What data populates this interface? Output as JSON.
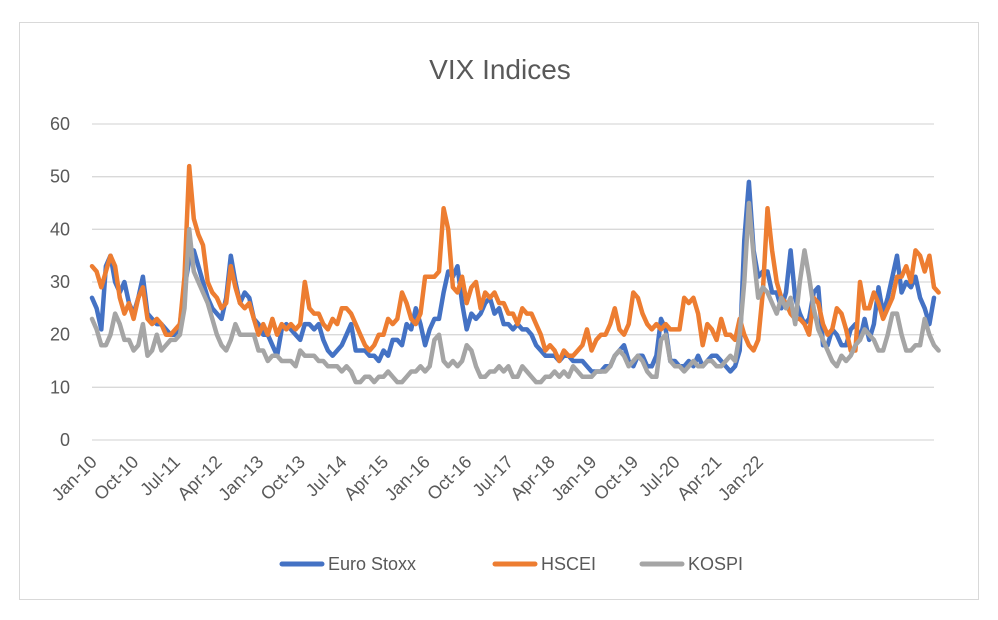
{
  "chart_data": {
    "type": "line",
    "title": "VIX Indices",
    "xlabel": "",
    "ylabel": "",
    "ylim": [
      0,
      60
    ],
    "yticks": [
      0,
      10,
      20,
      30,
      40,
      50,
      60
    ],
    "grid": true,
    "legend_position": "bottom",
    "x_start": "Jan-10",
    "frequency": "monthly",
    "x_tick_labels": [
      "Jan-10",
      "Oct-10",
      "Jul-11",
      "Apr-12",
      "Jan-13",
      "Oct-13",
      "Jul-14",
      "Apr-15",
      "Jan-16",
      "Oct-16",
      "Jul-17",
      "Apr-18",
      "Jan-19",
      "Oct-19",
      "Jul-20",
      "Apr-21",
      "Jan-22"
    ],
    "series": [
      {
        "name": "Euro Stoxx",
        "color": "#4472c4",
        "values": [
          27,
          25,
          21,
          33,
          35,
          30,
          28,
          30,
          26,
          24,
          27,
          31,
          24,
          23,
          22,
          22,
          21,
          20,
          20,
          22,
          29,
          34,
          36,
          33,
          30,
          27,
          25,
          24,
          23,
          27,
          35,
          30,
          26,
          28,
          27,
          23,
          22,
          20,
          20,
          18,
          16,
          21,
          22,
          21,
          20,
          19,
          22,
          22,
          21,
          22,
          19,
          17,
          16,
          17,
          18,
          20,
          22,
          17,
          17,
          17,
          16,
          16,
          15,
          17,
          16,
          19,
          19,
          18,
          22,
          21,
          25,
          22,
          18,
          21,
          23,
          23,
          28,
          32,
          31,
          33,
          26,
          21,
          24,
          23,
          24,
          26,
          27,
          24,
          25,
          22,
          22,
          21,
          22,
          21,
          21,
          20,
          18,
          17,
          16,
          16,
          16,
          15,
          16,
          16,
          15,
          15,
          15,
          14,
          13,
          13,
          13,
          14,
          14,
          16,
          17,
          18,
          15,
          14,
          16,
          16,
          14,
          14,
          16,
          23,
          21,
          15,
          15,
          14,
          14,
          15,
          14,
          16,
          14,
          15,
          16,
          16,
          15,
          14,
          13,
          14,
          17,
          38,
          49,
          36,
          31,
          32,
          32,
          28,
          28,
          25,
          28,
          36,
          27,
          24,
          22,
          23,
          28,
          29,
          18,
          18,
          21,
          20,
          18,
          18,
          21,
          22,
          19,
          23,
          19,
          22,
          29,
          24,
          27,
          31,
          35,
          28,
          30,
          29,
          31,
          27,
          25,
          22,
          27
        ]
      },
      {
        "name": "HSCEI",
        "color": "#ed7d31",
        "values": [
          33,
          32,
          29,
          32,
          35,
          33,
          27,
          24,
          26,
          23,
          27,
          29,
          23,
          22,
          23,
          22,
          20,
          20,
          21,
          22,
          31,
          52,
          42,
          39,
          37,
          30,
          28,
          27,
          25,
          26,
          33,
          29,
          26,
          25,
          26,
          23,
          20,
          22,
          20,
          23,
          20,
          22,
          21,
          22,
          21,
          22,
          30,
          25,
          24,
          24,
          22,
          21,
          23,
          22,
          25,
          25,
          24,
          22,
          20,
          18,
          17,
          18,
          20,
          20,
          23,
          22,
          23,
          28,
          26,
          23,
          22,
          24,
          31,
          31,
          31,
          32,
          44,
          40,
          29,
          28,
          31,
          26,
          29,
          30,
          25,
          28,
          27,
          28,
          26,
          26,
          24,
          24,
          22,
          25,
          24,
          24,
          22,
          20,
          17,
          18,
          17,
          15,
          17,
          16,
          16,
          17,
          18,
          21,
          17,
          19,
          20,
          20,
          22,
          25,
          21,
          20,
          22,
          28,
          27,
          24,
          22,
          21,
          22,
          21,
          22,
          21,
          21,
          21,
          27,
          26,
          27,
          24,
          18,
          22,
          21,
          19,
          23,
          20,
          20,
          19,
          23,
          20,
          18,
          17,
          19,
          28,
          44,
          36,
          30,
          27,
          26,
          24,
          23,
          23,
          22,
          20,
          27,
          26,
          22,
          20,
          21,
          25,
          24,
          21,
          17,
          17,
          30,
          25,
          25,
          28,
          26,
          23,
          25,
          27,
          31,
          31,
          33,
          30,
          36,
          35,
          32,
          35,
          29,
          28
        ]
      },
      {
        "name": "KOSPI",
        "color": "#a5a5a5",
        "values": [
          23,
          21,
          18,
          18,
          20,
          24,
          22,
          19,
          19,
          17,
          18,
          22,
          16,
          17,
          20,
          17,
          18,
          19,
          19,
          20,
          25,
          40,
          32,
          30,
          28,
          26,
          23,
          20,
          18,
          17,
          19,
          22,
          20,
          20,
          20,
          20,
          17,
          17,
          15,
          16,
          16,
          15,
          15,
          15,
          14,
          17,
          16,
          16,
          16,
          15,
          15,
          14,
          14,
          14,
          13,
          14,
          13,
          11,
          11,
          12,
          12,
          11,
          12,
          12,
          13,
          12,
          11,
          11,
          12,
          13,
          13,
          14,
          13,
          14,
          19,
          20,
          15,
          14,
          15,
          14,
          15,
          18,
          17,
          14,
          12,
          12,
          13,
          13,
          14,
          13,
          14,
          12,
          12,
          14,
          13,
          12,
          11,
          11,
          12,
          12,
          13,
          12,
          13,
          12,
          14,
          13,
          12,
          12,
          12,
          13,
          13,
          13,
          14,
          16,
          17,
          16,
          14,
          15,
          16,
          15,
          13,
          12,
          12,
          19,
          20,
          15,
          14,
          14,
          13,
          14,
          15,
          14,
          14,
          15,
          15,
          14,
          14,
          15,
          16,
          15,
          20,
          30,
          45,
          35,
          27,
          29,
          28,
          26,
          24,
          27,
          25,
          27,
          22,
          30,
          36,
          31,
          25,
          21,
          19,
          17,
          15,
          14,
          16,
          15,
          16,
          18,
          19,
          21,
          20,
          19,
          17,
          17,
          20,
          24,
          24,
          20,
          17,
          17,
          18,
          18,
          23,
          20,
          18,
          17
        ]
      }
    ]
  }
}
